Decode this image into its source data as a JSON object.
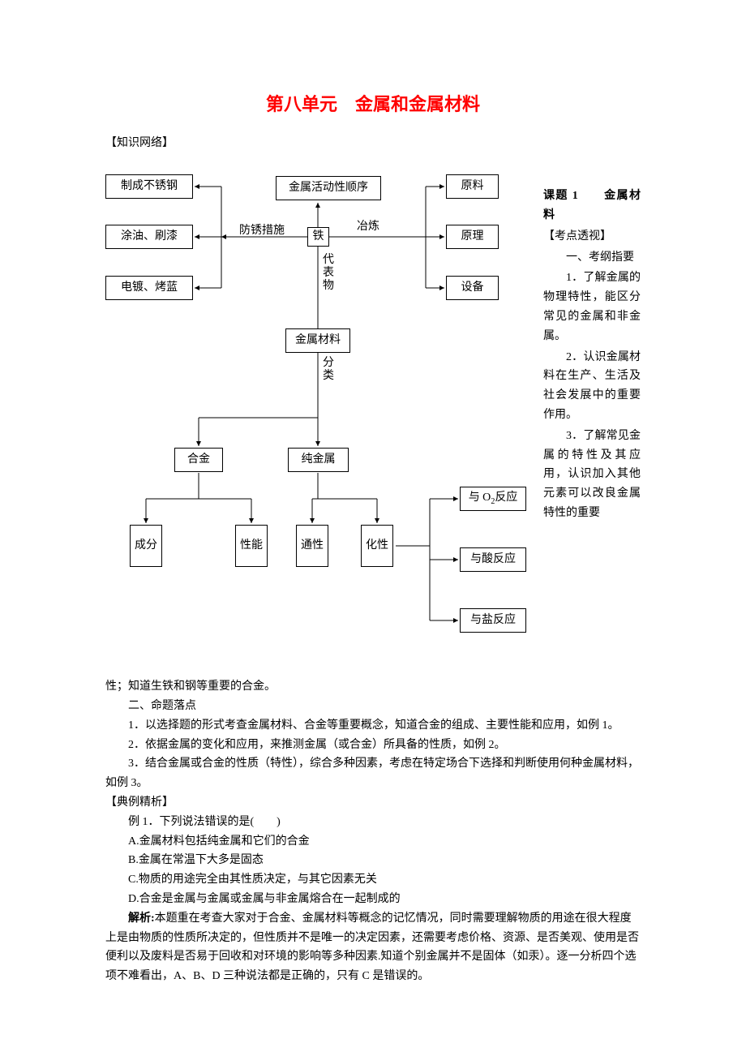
{
  "title": "第八单元　金属和金属材料",
  "section_knowledge": "【知识网络】",
  "diagram": {
    "nodes": {
      "n1": "制成不锈钢",
      "n2": "涂油、刷漆",
      "n3": "电镀、烤蓝",
      "n4": "金属活动性顺序",
      "n5": "铁",
      "n6": "金属材料",
      "n7": "原料",
      "n8": "原理",
      "n9": "设备",
      "n10": "合金",
      "n11": "纯金属",
      "n12": "成分",
      "n13": "性能",
      "n14": "通性",
      "n15": "化性",
      "n16_html": "与 O<sub>2</sub>反应",
      "n17": "与酸反应",
      "n18": "与盐反应"
    },
    "labels": {
      "fangxiu": "防锈措施",
      "yelian": "冶炼",
      "daibiaowu": "代表物",
      "fenlei": "分类"
    },
    "style": {
      "stroke": "#000000",
      "stroke_width": 1,
      "background": "#ffffff"
    }
  },
  "right_column": {
    "topic_label": "课题 1　　金属材料",
    "kaodian": "【考点透视】",
    "kaogang": "一、考纲指要",
    "items": [
      "1．了解金属的物理特性，能区分常见的金属和非金属。",
      "2．认识金属材料在生产、生活及社会发展中的重要作用。",
      "3．了解常见金属的特性及其应用，认识加入其他元素可以改良金属特性的重要"
    ]
  },
  "body": {
    "p1": "性；知道生铁和钢等重要的合金。",
    "p2": "二、命题落点",
    "p3": "1．以选择题的形式考查金属材料、合金等重要概念，知道合金的组成、主要性能和应用，如例 1。",
    "p4": "2．依据金属的变化和应用，来推测金属（或合金）所具备的性质，如例 2。",
    "p5": "3．结合金属或合金的性质（特性），综合多种因素，考虑在特定场合下选择和判断使用何种金属材料，如例 3。",
    "p6": "【典例精析】",
    "p7": "例 1．下列说法错误的是(　　)",
    "p8": "A.金属材料包括纯金属和它们的合金",
    "p9": "B.金属在常温下大多是固态",
    "p10": "C.物质的用途完全由其性质决定，与其它因素无关",
    "p11": "D.合金是金属与金属或金属与非金属熔合在一起制成的",
    "p12_bold": "解析:",
    "p12_rest": "本题重在考查大家对于合金、金属材料等概念的记忆情况，同时需要理解物质的用途在很大程度上是由物质的性质所决定的，但性质并不是唯一的决定因素，还需要考虑价格、资源、是否美观、使用是否便利以及废料是否易于回收和对环境的影响等多种因素.知道个别金属并不是固体（如汞）。逐一分析四个选项不难看出，A、B、D 三种说法都是正确的，只有 C 是错误的。"
  }
}
